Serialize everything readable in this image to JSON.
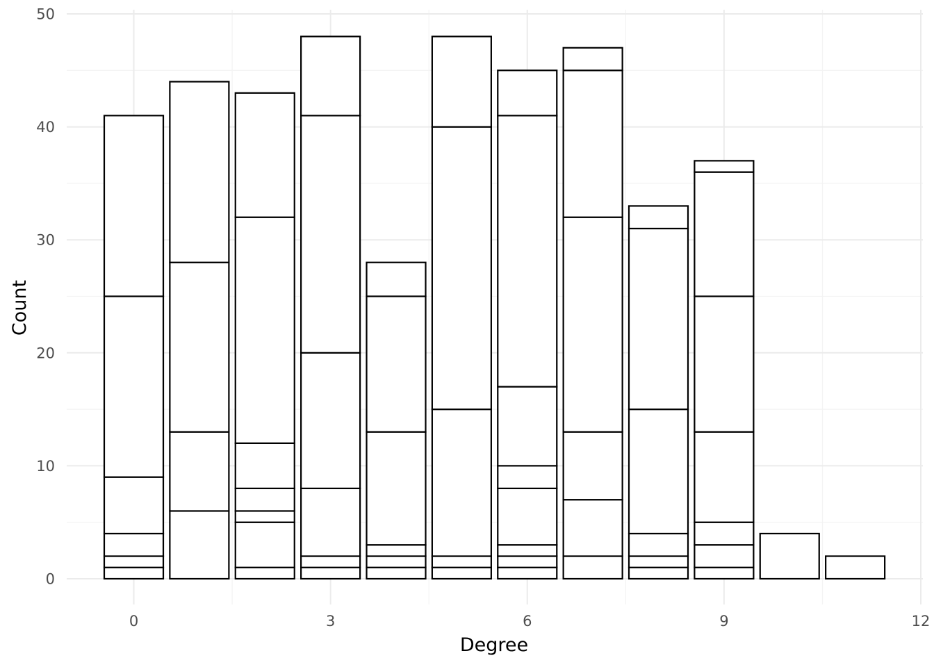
{
  "chart_data": {
    "type": "bar",
    "stacked": true,
    "title": "",
    "xlabel": "Degree",
    "ylabel": "Count",
    "xlim": [
      -1,
      12
    ],
    "ylim": [
      0,
      50
    ],
    "x_ticks": [
      0,
      3,
      6,
      9,
      12
    ],
    "y_ticks": [
      0,
      10,
      20,
      30,
      40,
      50
    ],
    "grid": true,
    "fill_color": "#ffffff",
    "outline_color": "#000000",
    "bars": [
      {
        "x": 0,
        "stack_boundaries": [
          1,
          2,
          4,
          9,
          25,
          41
        ]
      },
      {
        "x": 1,
        "stack_boundaries": [
          6,
          13,
          28,
          44
        ]
      },
      {
        "x": 2,
        "stack_boundaries": [
          1,
          5,
          6,
          8,
          12,
          32,
          43
        ]
      },
      {
        "x": 3,
        "stack_boundaries": [
          1,
          2,
          8,
          20,
          41,
          48
        ]
      },
      {
        "x": 4,
        "stack_boundaries": [
          1,
          2,
          3,
          13,
          25,
          28
        ]
      },
      {
        "x": 5,
        "stack_boundaries": [
          1,
          2,
          15,
          40,
          48
        ]
      },
      {
        "x": 6,
        "stack_boundaries": [
          1,
          2,
          3,
          8,
          10,
          17,
          41,
          45
        ]
      },
      {
        "x": 7,
        "stack_boundaries": [
          2,
          7,
          13,
          32,
          45,
          47
        ]
      },
      {
        "x": 8,
        "stack_boundaries": [
          1,
          2,
          4,
          15,
          31,
          33
        ]
      },
      {
        "x": 9,
        "stack_boundaries": [
          1,
          3,
          5,
          13,
          25,
          36,
          37
        ]
      },
      {
        "x": 10,
        "stack_boundaries": [
          4
        ]
      },
      {
        "x": 11,
        "stack_boundaries": [
          2
        ]
      }
    ]
  }
}
